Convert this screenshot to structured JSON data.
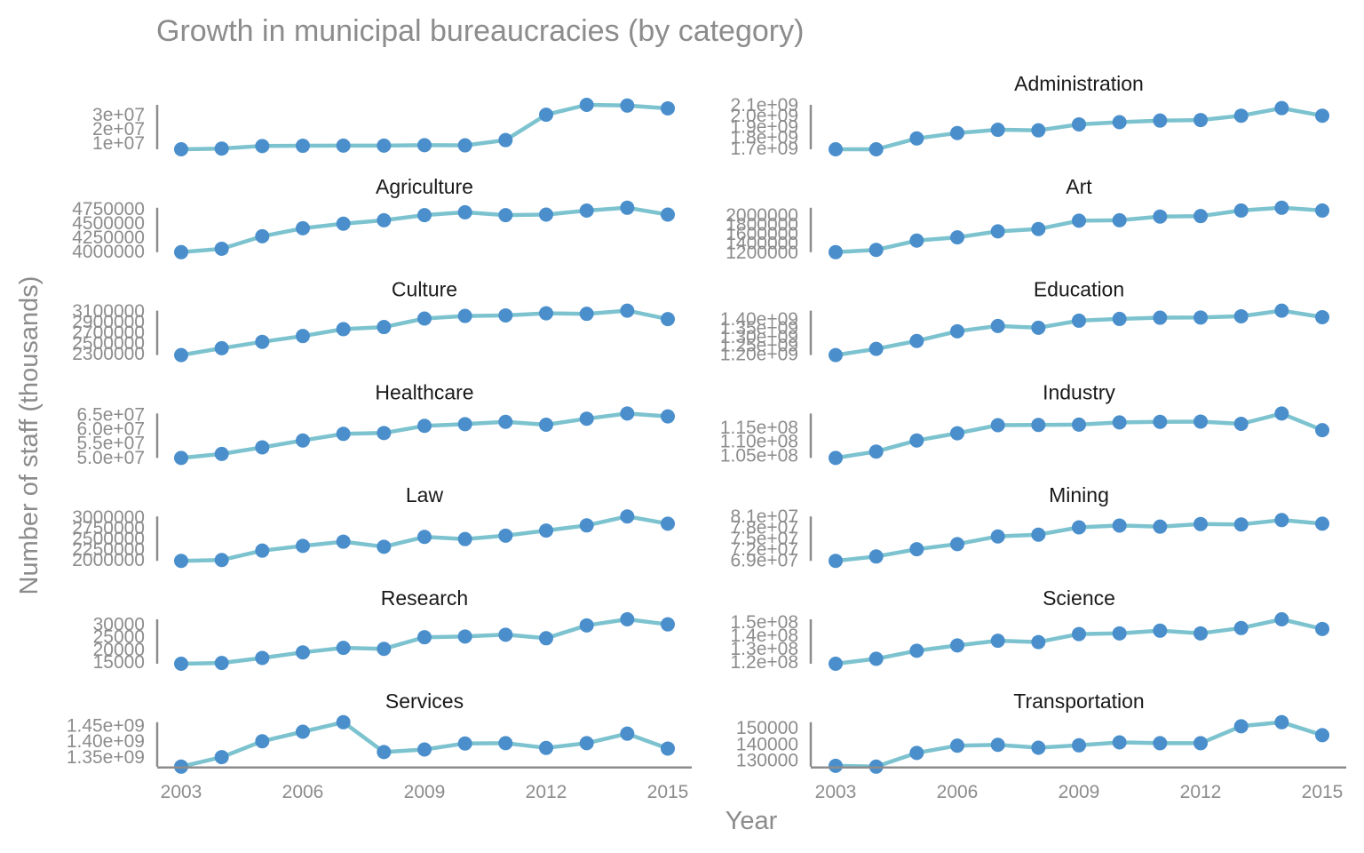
{
  "chart_data": {
    "type": "line",
    "title": "Growth in municipal bureaucracies (by category)",
    "xlabel": "Year",
    "ylabel": "Number of staff (thousands)",
    "x": [
      2003,
      2004,
      2005,
      2006,
      2007,
      2008,
      2009,
      2010,
      2011,
      2012,
      2013,
      2014,
      2015
    ],
    "x_ticks": [
      "2003",
      "2006",
      "2009",
      "2012",
      "2015"
    ],
    "facets": [
      {
        "name": "",
        "values": [
          5500000,
          6000000,
          7800000,
          8000000,
          8100000,
          8100000,
          8400000,
          8300000,
          12000000,
          30000000,
          37000000,
          36500000,
          34500000
        ],
        "y_ticks": [
          {
            "v": 10000000,
            "label": "1e+07"
          },
          {
            "v": 20000000,
            "label": "2e+07"
          },
          {
            "v": 30000000,
            "label": "3e+07"
          }
        ]
      },
      {
        "name": "Administration",
        "values": [
          1690000000,
          1690000000,
          1790000000,
          1840000000,
          1870000000,
          1865000000,
          1920000000,
          1940000000,
          1955000000,
          1960000000,
          2000000000,
          2070000000,
          2000000000
        ],
        "y_ticks": [
          {
            "v": 1700000000,
            "label": "1.7e+09"
          },
          {
            "v": 1800000000,
            "label": "1.8e+09"
          },
          {
            "v": 1900000000,
            "label": "1.9e+09"
          },
          {
            "v": 2000000000,
            "label": "2.0e+09"
          },
          {
            "v": 2100000000,
            "label": "2.1e+09"
          }
        ]
      },
      {
        "name": "Agriculture",
        "values": [
          3990000,
          4050000,
          4270000,
          4410000,
          4490000,
          4550000,
          4640000,
          4690000,
          4640000,
          4650000,
          4720000,
          4770000,
          4650000
        ],
        "y_ticks": [
          {
            "v": 4000000,
            "label": "4000000"
          },
          {
            "v": 4250000,
            "label": "4250000"
          },
          {
            "v": 4500000,
            "label": "4500000"
          },
          {
            "v": 4750000,
            "label": "4750000"
          }
        ]
      },
      {
        "name": "Art",
        "values": [
          1200000,
          1250000,
          1450000,
          1520000,
          1650000,
          1700000,
          1880000,
          1890000,
          1970000,
          1980000,
          2100000,
          2160000,
          2100000
        ],
        "y_ticks": [
          {
            "v": 1200000,
            "label": "1200000"
          },
          {
            "v": 1400000,
            "label": "1400000"
          },
          {
            "v": 1600000,
            "label": "1600000"
          },
          {
            "v": 1800000,
            "label": "1800000"
          },
          {
            "v": 2000000,
            "label": "2000000"
          }
        ]
      },
      {
        "name": "Culture",
        "values": [
          2270000,
          2400000,
          2520000,
          2630000,
          2760000,
          2800000,
          2960000,
          3010000,
          3020000,
          3060000,
          3050000,
          3110000,
          2950000
        ],
        "y_ticks": [
          {
            "v": 2300000,
            "label": "2300000"
          },
          {
            "v": 2500000,
            "label": "2500000"
          },
          {
            "v": 2700000,
            "label": "2700000"
          },
          {
            "v": 2900000,
            "label": "2900000"
          },
          {
            "v": 3100000,
            "label": "3100000"
          }
        ]
      },
      {
        "name": "Education",
        "values": [
          1195000000,
          1230000000,
          1275000000,
          1330000000,
          1360000000,
          1350000000,
          1390000000,
          1400000000,
          1407000000,
          1408000000,
          1415000000,
          1447000000,
          1410000000
        ],
        "y_ticks": [
          {
            "v": 1200000000,
            "label": "1.20e+09"
          },
          {
            "v": 1250000000,
            "label": "1.25e+09"
          },
          {
            "v": 1300000000,
            "label": "1.30e+09"
          },
          {
            "v": 1350000000,
            "label": "1.35e+09"
          },
          {
            "v": 1400000000,
            "label": "1.40e+09"
          }
        ]
      },
      {
        "name": "Healthcare",
        "values": [
          49800000,
          51200000,
          53500000,
          55900000,
          58200000,
          58500000,
          61000000,
          61600000,
          62400000,
          61400000,
          63500000,
          65300000,
          64300000
        ],
        "y_ticks": [
          {
            "v": 50000000,
            "label": "5.0e+07"
          },
          {
            "v": 55000000,
            "label": "5.5e+07"
          },
          {
            "v": 60000000,
            "label": "6.0e+07"
          },
          {
            "v": 65000000,
            "label": "6.5e+07"
          }
        ]
      },
      {
        "name": "Industry",
        "values": [
          104000000,
          106300000,
          110300000,
          112900000,
          115800000,
          115900000,
          116000000,
          116800000,
          117000000,
          117100000,
          116300000,
          120000000,
          114000000
        ],
        "y_ticks": [
          {
            "v": 105000000,
            "label": "1.05e+08"
          },
          {
            "v": 110000000,
            "label": "1.10e+08"
          },
          {
            "v": 115000000,
            "label": "1.15e+08"
          }
        ]
      },
      {
        "name": "Law",
        "values": [
          1980000,
          2000000,
          2220000,
          2330000,
          2430000,
          2310000,
          2540000,
          2490000,
          2570000,
          2690000,
          2810000,
          3020000,
          2850000
        ],
        "y_ticks": [
          {
            "v": 2000000,
            "label": "2000000"
          },
          {
            "v": 2250000,
            "label": "2250000"
          },
          {
            "v": 2500000,
            "label": "2500000"
          },
          {
            "v": 2750000,
            "label": "2750000"
          },
          {
            "v": 3000000,
            "label": "3000000"
          }
        ]
      },
      {
        "name": "Mining",
        "values": [
          68800000,
          70000000,
          72000000,
          73400000,
          75500000,
          76000000,
          78000000,
          78500000,
          78200000,
          78900000,
          78800000,
          80000000,
          79000000
        ],
        "y_ticks": [
          {
            "v": 69000000,
            "label": "6.9e+07"
          },
          {
            "v": 72000000,
            "label": "7.2e+07"
          },
          {
            "v": 75000000,
            "label": "7.5e+07"
          },
          {
            "v": 78000000,
            "label": "7.8e+07"
          },
          {
            "v": 81000000,
            "label": "8.1e+07"
          }
        ]
      },
      {
        "name": "Research",
        "values": [
          14300000,
          14600000,
          16600000,
          18800000,
          20600000,
          20200000,
          24800000,
          25100000,
          25800000,
          24400000,
          29500000,
          31900000,
          29900000
        ],
        "y_ticks": [
          {
            "v": 15000000,
            "label": "15000"
          },
          {
            "v": 20000000,
            "label": "20000"
          },
          {
            "v": 25000000,
            "label": "25000"
          },
          {
            "v": 30000000,
            "label": "30000"
          }
        ]
      },
      {
        "name": "Science",
        "values": [
          118800000,
          122500000,
          128500000,
          132500000,
          136000000,
          135000000,
          141000000,
          141500000,
          143500000,
          141500000,
          145500000,
          152000000,
          144800000
        ],
        "y_ticks": [
          {
            "v": 120000000,
            "label": "1.2e+08"
          },
          {
            "v": 130000000,
            "label": "1.3e+08"
          },
          {
            "v": 140000000,
            "label": "1.4e+08"
          },
          {
            "v": 150000000,
            "label": "1.5e+08"
          }
        ]
      },
      {
        "name": "Services",
        "values": [
          1320000000,
          1350000000,
          1400000000,
          1430000000,
          1460000000,
          1366000000,
          1374000000,
          1393000000,
          1394000000,
          1379000000,
          1394000000,
          1424000000,
          1377000000
        ],
        "y_ticks": [
          {
            "v": 1350000000,
            "label": "1.35e+09"
          },
          {
            "v": 1400000000,
            "label": "1.40e+09"
          },
          {
            "v": 1450000000,
            "label": "1.45e+09"
          }
        ]
      },
      {
        "name": "Transportation",
        "values": [
          126500000,
          126000000,
          134500000,
          139000000,
          139500000,
          137700000,
          139200000,
          141000000,
          140500000,
          140500000,
          151000000,
          153500000,
          145500000
        ],
        "y_ticks": [
          {
            "v": 130000000,
            "label": "130000"
          },
          {
            "v": 140000000,
            "label": "140000"
          },
          {
            "v": 150000000,
            "label": "150000"
          }
        ]
      }
    ]
  }
}
